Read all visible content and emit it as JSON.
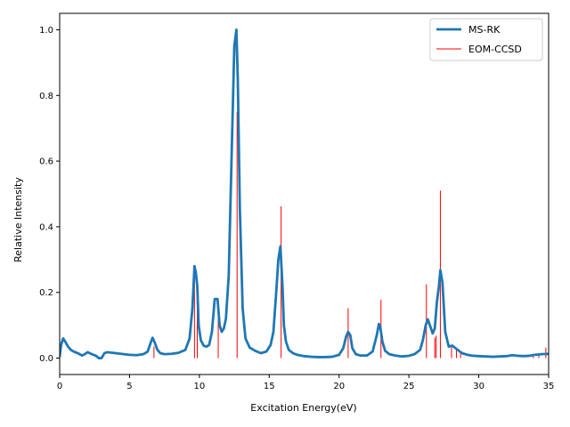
{
  "chart_data": {
    "type": "line",
    "xlabel": "Excitation Energy(eV)",
    "ylabel": "Relative Intensity",
    "xlim": [
      0,
      35
    ],
    "ylim": [
      -0.05,
      1.05
    ],
    "xticks": [
      0,
      5,
      10,
      15,
      20,
      25,
      30,
      35
    ],
    "yticks": [
      0.0,
      0.2,
      0.4,
      0.6,
      0.8,
      1.0
    ],
    "grid": false,
    "legend_position": "top-right",
    "series": [
      {
        "name": "MS-RK",
        "kind": "line",
        "color": "#1f77b4",
        "x": [
          0.0,
          0.1,
          0.25,
          0.4,
          0.6,
          0.8,
          1.0,
          1.3,
          1.6,
          1.8,
          2.0,
          2.3,
          2.6,
          2.8,
          3.0,
          3.2,
          3.4,
          3.8,
          4.2,
          4.6,
          5.0,
          5.5,
          6.0,
          6.3,
          6.5,
          6.65,
          6.8,
          7.0,
          7.2,
          7.5,
          8.0,
          8.5,
          9.0,
          9.3,
          9.5,
          9.65,
          9.75,
          9.85,
          9.95,
          10.1,
          10.3,
          10.5,
          10.7,
          10.9,
          11.1,
          11.3,
          11.45,
          11.6,
          11.75,
          11.9,
          12.1,
          12.3,
          12.5,
          12.65,
          12.75,
          12.9,
          13.1,
          13.3,
          13.6,
          14.0,
          14.4,
          14.8,
          15.1,
          15.3,
          15.5,
          15.65,
          15.8,
          15.95,
          16.05,
          16.2,
          16.4,
          16.7,
          17.0,
          17.5,
          18.0,
          18.5,
          19.0,
          19.5,
          20.0,
          20.3,
          20.5,
          20.65,
          20.8,
          20.95,
          21.2,
          21.5,
          22.0,
          22.4,
          22.7,
          22.85,
          22.95,
          23.1,
          23.3,
          23.6,
          24.0,
          24.5,
          25.0,
          25.4,
          25.8,
          26.0,
          26.2,
          26.35,
          26.5,
          26.7,
          26.85,
          27.0,
          27.15,
          27.25,
          27.4,
          27.6,
          27.85,
          28.1,
          28.4,
          28.8,
          29.2,
          29.6,
          30.0,
          30.5,
          31.0,
          31.5,
          32.0,
          32.4,
          32.8,
          33.2,
          33.6,
          34.0,
          34.5,
          35.0
        ],
        "y": [
          0.005,
          0.04,
          0.06,
          0.05,
          0.035,
          0.025,
          0.02,
          0.015,
          0.008,
          0.012,
          0.018,
          0.012,
          0.007,
          0.0,
          0.0,
          0.015,
          0.018,
          0.016,
          0.014,
          0.012,
          0.01,
          0.009,
          0.012,
          0.02,
          0.045,
          0.062,
          0.048,
          0.025,
          0.015,
          0.012,
          0.013,
          0.016,
          0.025,
          0.06,
          0.15,
          0.28,
          0.26,
          0.22,
          0.1,
          0.055,
          0.038,
          0.035,
          0.04,
          0.08,
          0.18,
          0.18,
          0.1,
          0.08,
          0.09,
          0.12,
          0.25,
          0.6,
          0.95,
          1.0,
          0.85,
          0.45,
          0.15,
          0.06,
          0.032,
          0.022,
          0.015,
          0.02,
          0.04,
          0.08,
          0.2,
          0.3,
          0.34,
          0.22,
          0.1,
          0.05,
          0.025,
          0.015,
          0.01,
          0.006,
          0.004,
          0.003,
          0.003,
          0.004,
          0.01,
          0.03,
          0.065,
          0.08,
          0.07,
          0.03,
          0.012,
          0.008,
          0.008,
          0.02,
          0.07,
          0.104,
          0.095,
          0.05,
          0.022,
          0.012,
          0.008,
          0.005,
          0.007,
          0.012,
          0.025,
          0.055,
          0.1,
          0.118,
          0.1,
          0.075,
          0.09,
          0.17,
          0.22,
          0.268,
          0.23,
          0.08,
          0.035,
          0.038,
          0.028,
          0.015,
          0.01,
          0.007,
          0.006,
          0.005,
          0.004,
          0.005,
          0.006,
          0.009,
          0.007,
          0.006,
          0.007,
          0.01,
          0.012,
          0.013
        ]
      },
      {
        "name": "EOM-CCSD",
        "kind": "stem",
        "color": "#ff0000",
        "x": [
          6.75,
          9.65,
          9.85,
          11.35,
          12.7,
          15.85,
          20.65,
          23.0,
          26.25,
          26.85,
          26.95,
          27.25,
          28.05,
          28.4,
          28.7,
          33.9,
          34.3,
          34.8
        ],
        "y": [
          0.035,
          0.265,
          0.228,
          0.162,
          0.75,
          0.462,
          0.152,
          0.178,
          0.225,
          0.062,
          0.068,
          0.51,
          0.032,
          0.025,
          0.018,
          0.012,
          0.014,
          0.032
        ]
      }
    ]
  }
}
